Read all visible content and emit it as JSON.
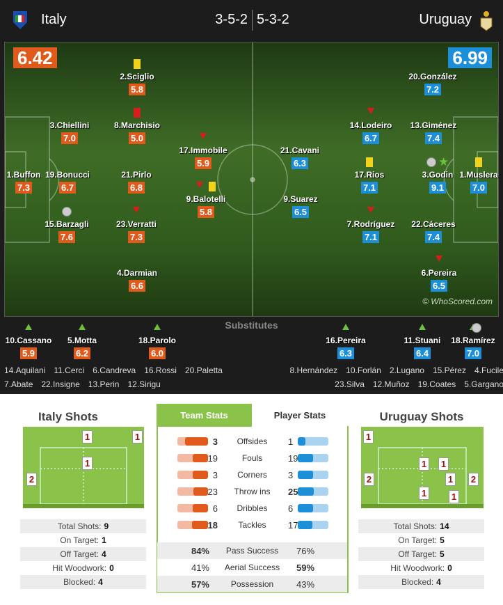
{
  "header": {
    "home_team": "Italy",
    "home_formation": "3-5-2",
    "away_formation": "5-3-2",
    "away_team": "Uruguay"
  },
  "pitch": {
    "home_rating": "6.42",
    "away_rating": "6.99",
    "watermark": "© WhoScored.com",
    "home_players": [
      {
        "name": "2.Sciglio",
        "rating": "5.8"
      },
      {
        "name": "8.Marchisio",
        "rating": "5.0"
      },
      {
        "name": "3.Chiellini",
        "rating": "7.0"
      },
      {
        "name": "1.Buffon",
        "rating": "7.3"
      },
      {
        "name": "19.Bonucci",
        "rating": "6.7"
      },
      {
        "name": "21.Pirlo",
        "rating": "6.8"
      },
      {
        "name": "15.Barzagli",
        "rating": "7.6"
      },
      {
        "name": "23.Verratti",
        "rating": "7.3"
      },
      {
        "name": "4.Darmian",
        "rating": "6.6"
      },
      {
        "name": "17.Immobile",
        "rating": "5.9"
      },
      {
        "name": "9.Balotelli",
        "rating": "5.8"
      }
    ],
    "away_players": [
      {
        "name": "20.González",
        "rating": "7.2"
      },
      {
        "name": "14.Lodeiro",
        "rating": "6.7"
      },
      {
        "name": "13.Giménez",
        "rating": "7.4"
      },
      {
        "name": "21.Cavani",
        "rating": "6.3"
      },
      {
        "name": "9.Suarez",
        "rating": "6.5"
      },
      {
        "name": "17.Rios",
        "rating": "7.1"
      },
      {
        "name": "3.Godin",
        "rating": "9.1"
      },
      {
        "name": "1.Muslera",
        "rating": "7.0"
      },
      {
        "name": "7.Rodríguez",
        "rating": "7.1"
      },
      {
        "name": "22.Cáceres",
        "rating": "7.4"
      },
      {
        "name": "6.Pereira",
        "rating": "6.5"
      }
    ]
  },
  "substitutes": {
    "label": "Substitutes",
    "home_used": [
      {
        "name": "10.Cassano",
        "rating": "5.9"
      },
      {
        "name": "5.Motta",
        "rating": "6.2"
      },
      {
        "name": "18.Parolo",
        "rating": "6.0"
      }
    ],
    "away_used": [
      {
        "name": "16.Pereira",
        "rating": "6.3"
      },
      {
        "name": "11.Stuani",
        "rating": "6.4"
      },
      {
        "name": "18.Ramírez",
        "rating": "7.0"
      }
    ],
    "home_unused": [
      [
        "14.Aquilani",
        "11.Cerci",
        "6.Candreva",
        "16.Rossi",
        "20.Paletta"
      ],
      [
        "7.Abate",
        "22.Insigne",
        "13.Perin",
        "12.Sirigu"
      ]
    ],
    "away_unused": [
      [
        "8.Hernández",
        "10.Forlán",
        "2.Lugano",
        "15.Pérez",
        "4.Fucile"
      ],
      [
        "23.Silva",
        "12.Muñoz",
        "19.Coates",
        "5.Gargano"
      ]
    ]
  },
  "shots": {
    "home": {
      "title": "Italy Shots",
      "zones": [
        1,
        1,
        1,
        2
      ],
      "stats": [
        {
          "label": "Total Shots:",
          "value": 9
        },
        {
          "label": "On Target:",
          "value": 1
        },
        {
          "label": "Off Target:",
          "value": 4
        },
        {
          "label": "Hit Woodwork:",
          "value": 0
        },
        {
          "label": "Blocked:",
          "value": 4
        }
      ]
    },
    "away": {
      "title": "Uruguay Shots",
      "zones": [
        1,
        1,
        1,
        1,
        2,
        2,
        1,
        1
      ],
      "stats": [
        {
          "label": "Total Shots:",
          "value": 14
        },
        {
          "label": "On Target:",
          "value": 5
        },
        {
          "label": "Off Target:",
          "value": 5
        },
        {
          "label": "Hit Woodwork:",
          "value": 0
        },
        {
          "label": "Blocked:",
          "value": 4
        }
      ]
    }
  },
  "team_stats": {
    "tabs": [
      "Team Stats",
      "Player Stats"
    ],
    "rows": [
      {
        "label": "Offsides",
        "home": 3,
        "away": 1
      },
      {
        "label": "Fouls",
        "home": 19,
        "away": 19
      },
      {
        "label": "Corners",
        "home": 3,
        "away": 3
      },
      {
        "label": "Throw ins",
        "home": 23,
        "away": 25
      },
      {
        "label": "Dribbles",
        "home": 6,
        "away": 6
      },
      {
        "label": "Tackles",
        "home": 18,
        "away": 17
      }
    ],
    "percent_rows": [
      {
        "label": "Pass Success",
        "home": "84%",
        "away": "76%"
      },
      {
        "label": "Aerial Success",
        "home": "41%",
        "away": "59%"
      },
      {
        "label": "Possession",
        "home": "57%",
        "away": "43%"
      }
    ]
  }
}
